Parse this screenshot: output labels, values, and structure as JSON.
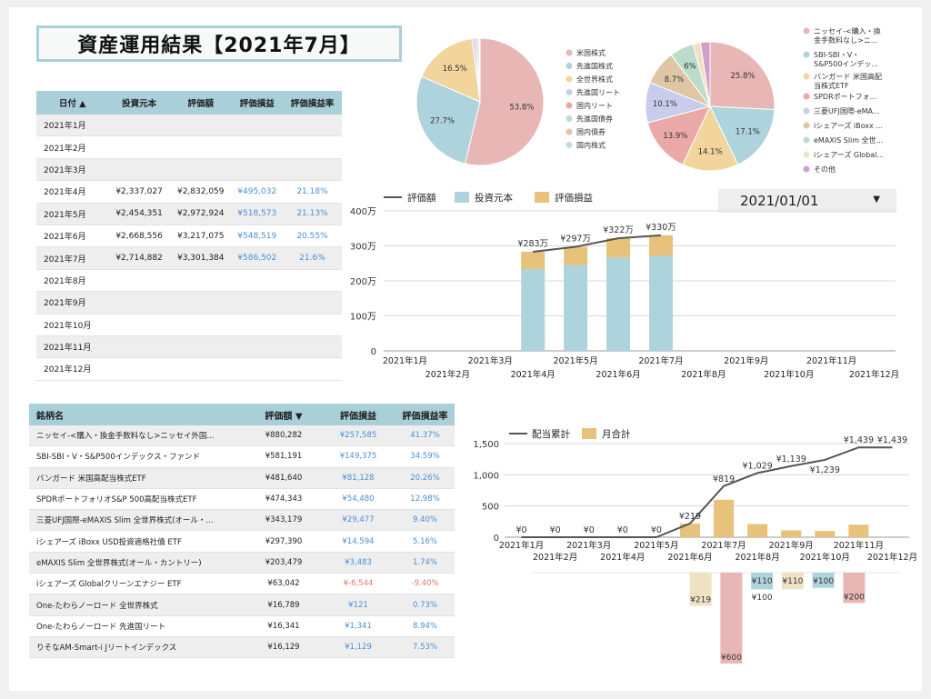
{
  "title": "資産運用結果【2021年7月】",
  "monthly_table": {
    "headers": [
      "日付 ▲",
      "投資元本",
      "評価額",
      "評価損益",
      "評価損益率"
    ],
    "rows": [
      [
        "2021年1月",
        "",
        "",
        "",
        ""
      ],
      [
        "2021年2月",
        "",
        "",
        "",
        ""
      ],
      [
        "2021年3月",
        "",
        "",
        "",
        ""
      ],
      [
        "2021年4月",
        "¥2,337,027",
        "¥2,832,059",
        "¥495,032",
        "21.18%"
      ],
      [
        "2021年5月",
        "¥2,454,351",
        "¥2,972,924",
        "¥518,573",
        "21.13%"
      ],
      [
        "2021年6月",
        "¥2,668,556",
        "¥3,217,075",
        "¥548,519",
        "20.55%"
      ],
      [
        "2021年7月",
        "¥2,714,882",
        "¥3,301,384",
        "¥586,502",
        "21.6%"
      ],
      [
        "2021年8月",
        "",
        "",
        "",
        ""
      ],
      [
        "2021年9月",
        "",
        "",
        "",
        ""
      ],
      [
        "2021年10月",
        "",
        "",
        "",
        ""
      ],
      [
        "2021年11月",
        "",
        "",
        "",
        ""
      ],
      [
        "2021年12月",
        "",
        "",
        "",
        ""
      ]
    ]
  },
  "holdings_table": {
    "headers": [
      "銘柄名",
      "評価額 ▼",
      "評価損益",
      "評価損益率"
    ],
    "rows": [
      [
        "ニッセイ-<購入・換金手数料なし>ニッセイ外国...",
        "¥880,282",
        "¥257,585",
        "41.37%",
        "gain"
      ],
      [
        "SBI-SBI・V・S&P500インデックス・ファンド",
        "¥581,191",
        "¥149,375",
        "34.59%",
        "gain"
      ],
      [
        "バンガード 米国高配当株式ETF",
        "¥481,640",
        "¥81,128",
        "20.26%",
        "gain"
      ],
      [
        "SPDRポートフォリオS&P 500高配当株式ETF",
        "¥474,343",
        "¥54,480",
        "12.98%",
        "gain"
      ],
      [
        "三菱UFJ国際-eMAXIS Slim 全世界株式(オール・...",
        "¥343,179",
        "¥29,477",
        "9.40%",
        "gain"
      ],
      [
        "iシェアーズ iBoxx USD投資適格社債 ETF",
        "¥297,390",
        "¥14,594",
        "5.16%",
        "gain"
      ],
      [
        "eMAXIS Slim 全世界株式(オール・カントリー)",
        "¥203,479",
        "¥3,483",
        "1.74%",
        "gain"
      ],
      [
        "iシェアーズ Globalクリーンエナジー ETF",
        "¥63,042",
        "¥-6,544",
        "-9.40%",
        "loss"
      ],
      [
        "One-たわらノーロード 全世界株式",
        "¥16,789",
        "¥121",
        "0.73%",
        "gain"
      ],
      [
        "One-たわらノーロード 先進国リート",
        "¥16,341",
        "¥1,341",
        "8.94%",
        "gain"
      ],
      [
        "りそなAM-Smart-i Jリートインデックス",
        "¥16,129",
        "¥1,129",
        "7.53%",
        "gain"
      ]
    ]
  },
  "date_selector": {
    "value": "2021/01/01"
  },
  "colors": {
    "pink": "#e9b6b6",
    "blue": "#add3dc",
    "yellow": "#f2d59d",
    "lavender": "#c8cdec",
    "salmon": "#eaa9a6",
    "sage": "#bcdcc8",
    "tan": "#dfc6a4",
    "lightgreen": "#bfe0cf",
    "cream": "#efe2c4",
    "purple": "#cfa0c9",
    "gold": "#e6c27a",
    "line": "#555555"
  },
  "chart_data": [
    {
      "type": "pie",
      "slices": [
        {
          "label": "米国株式",
          "value": 53.8,
          "color": "#e9b6b6"
        },
        {
          "label": "先進国株式",
          "value": 27.7,
          "color": "#add3dc"
        },
        {
          "label": "全世界株式",
          "value": 16.5,
          "color": "#f2d59d"
        },
        {
          "label": "先進国リート",
          "value": 0.7,
          "color": "#c8cdec"
        },
        {
          "label": "国内リート",
          "value": 0.5,
          "color": "#eaa9a6"
        },
        {
          "label": "先進国債券",
          "value": 0.5,
          "color": "#bcdcc8"
        },
        {
          "label": "国内債券",
          "value": 0.2,
          "color": "#dfc6a4"
        },
        {
          "label": "国内株式",
          "value": 0.1,
          "color": "#bfe0cf"
        }
      ],
      "show_labels": [
        "53.8%",
        "27.7%",
        "16.5%"
      ],
      "legend_position": "right"
    },
    {
      "type": "pie",
      "slices": [
        {
          "label": "ニッセイ-<購入・換金手数料なし>ニ...",
          "value": 25.8,
          "color": "#e9b6b6"
        },
        {
          "label": "SBI-SBI・V・S&P500インデッ...",
          "value": 17.1,
          "color": "#add3dc"
        },
        {
          "label": "バンガード 米国高配当株式ETF",
          "value": 14.1,
          "color": "#f2d59d"
        },
        {
          "label": "SPDRポートフォ...",
          "value": 13.9,
          "color": "#eaa9a6"
        },
        {
          "label": "三菱UFJ国際-eMA...",
          "value": 10.1,
          "color": "#c8cdec"
        },
        {
          "label": "iシェアーズ iBoxx ...",
          "value": 8.7,
          "color": "#dfc6a4"
        },
        {
          "label": "eMAXIS Slim 全世...",
          "value": 6.0,
          "color": "#bcdcc8"
        },
        {
          "label": "iシェアーズ Global...",
          "value": 1.9,
          "color": "#efe2c4"
        },
        {
          "label": "その他",
          "value": 2.4,
          "color": "#cfa0c9"
        }
      ],
      "show_labels": [
        "25.8%",
        "17.1%",
        "14.1%",
        "13.9%",
        "10.1%",
        "8.7%",
        "6%"
      ],
      "legend_position": "right"
    },
    {
      "type": "bar",
      "stacked": true,
      "categories": [
        "2021年1月",
        "2021年2月",
        "2021年3月",
        "2021年4月",
        "2021年5月",
        "2021年6月",
        "2021年7月",
        "2021年8月",
        "2021年9月",
        "2021年10月",
        "2021年11月",
        "2021年12月"
      ],
      "series": [
        {
          "name": "評価額",
          "kind": "line",
          "values": [
            null,
            null,
            null,
            2832059,
            2972924,
            3217075,
            3301384,
            null,
            null,
            null,
            null,
            null
          ]
        },
        {
          "name": "投資元本",
          "kind": "bar",
          "values": [
            0,
            0,
            0,
            2337027,
            2454351,
            2668556,
            2714882,
            0,
            0,
            0,
            0,
            0
          ]
        },
        {
          "name": "評価損益",
          "kind": "bar",
          "values": [
            0,
            0,
            0,
            495032,
            518573,
            548519,
            586502,
            0,
            0,
            0,
            0,
            0
          ]
        }
      ],
      "line_labels": [
        "¥283万",
        "¥297万",
        "¥322万",
        "¥330万"
      ],
      "yticks": [
        "0",
        "100万",
        "200万",
        "300万",
        "400万"
      ],
      "ylim": [
        0,
        4000000
      ],
      "legend_position": "top-left"
    },
    {
      "type": "bar",
      "categories": [
        "2021年1月",
        "2021年2月",
        "2021年3月",
        "2021年4月",
        "2021年5月",
        "2021年6月",
        "2021年7月",
        "2021年8月",
        "2021年9月",
        "2021年10月",
        "2021年11月",
        "2021年12月"
      ],
      "series": [
        {
          "name": "配当累計",
          "kind": "line",
          "values": [
            0,
            0,
            0,
            0,
            0,
            219,
            819,
            1029,
            1139,
            1239,
            1439,
            1439
          ]
        },
        {
          "name": "月合計",
          "kind": "bar",
          "values": [
            0,
            0,
            0,
            0,
            0,
            219,
            600,
            210,
            110,
            100,
            200,
            0
          ]
        }
      ],
      "line_labels": [
        "¥0",
        "¥0",
        "¥0",
        "¥0",
        "¥0",
        "¥219",
        "¥819",
        "¥1,029",
        "¥1,139",
        "¥1,239",
        "¥1,439",
        "¥1,439"
      ],
      "yticks": [
        "0",
        "500",
        "1,000",
        "1,500"
      ],
      "ylim": [
        0,
        1500
      ],
      "legend_position": "top-left"
    },
    {
      "type": "bar",
      "categories": [
        "2021年1月",
        "2021年2月",
        "2021年3月",
        "2021年4月",
        "2021年5月",
        "2021年6月",
        "2021年7月",
        "2021年8月",
        "2021年9月",
        "2021年10月",
        "2021年11月",
        "2021年12月"
      ],
      "series": [
        {
          "values": [
            0,
            0,
            0,
            0,
            0,
            219,
            600,
            110,
            110,
            100,
            200,
            0
          ],
          "colors": [
            "#e9b6b6",
            "#e9b6b6",
            "#e9b6b6",
            "#e9b6b6",
            "#e9b6b6",
            "#efe2c4",
            "#e9b6b6",
            "#add3dc",
            "#efe2c4",
            "#add3dc",
            "#e9b6b6",
            "#e9b6b6"
          ]
        }
      ],
      "bar_labels": [
        "",
        "",
        "",
        "",
        "",
        "¥219",
        "¥600",
        "¥110",
        "¥110",
        "¥100",
        "¥200",
        ""
      ],
      "sub_labels": [
        "",
        "",
        "",
        "",
        "",
        "",
        "",
        "¥100",
        "",
        "",
        "",
        ""
      ]
    }
  ]
}
